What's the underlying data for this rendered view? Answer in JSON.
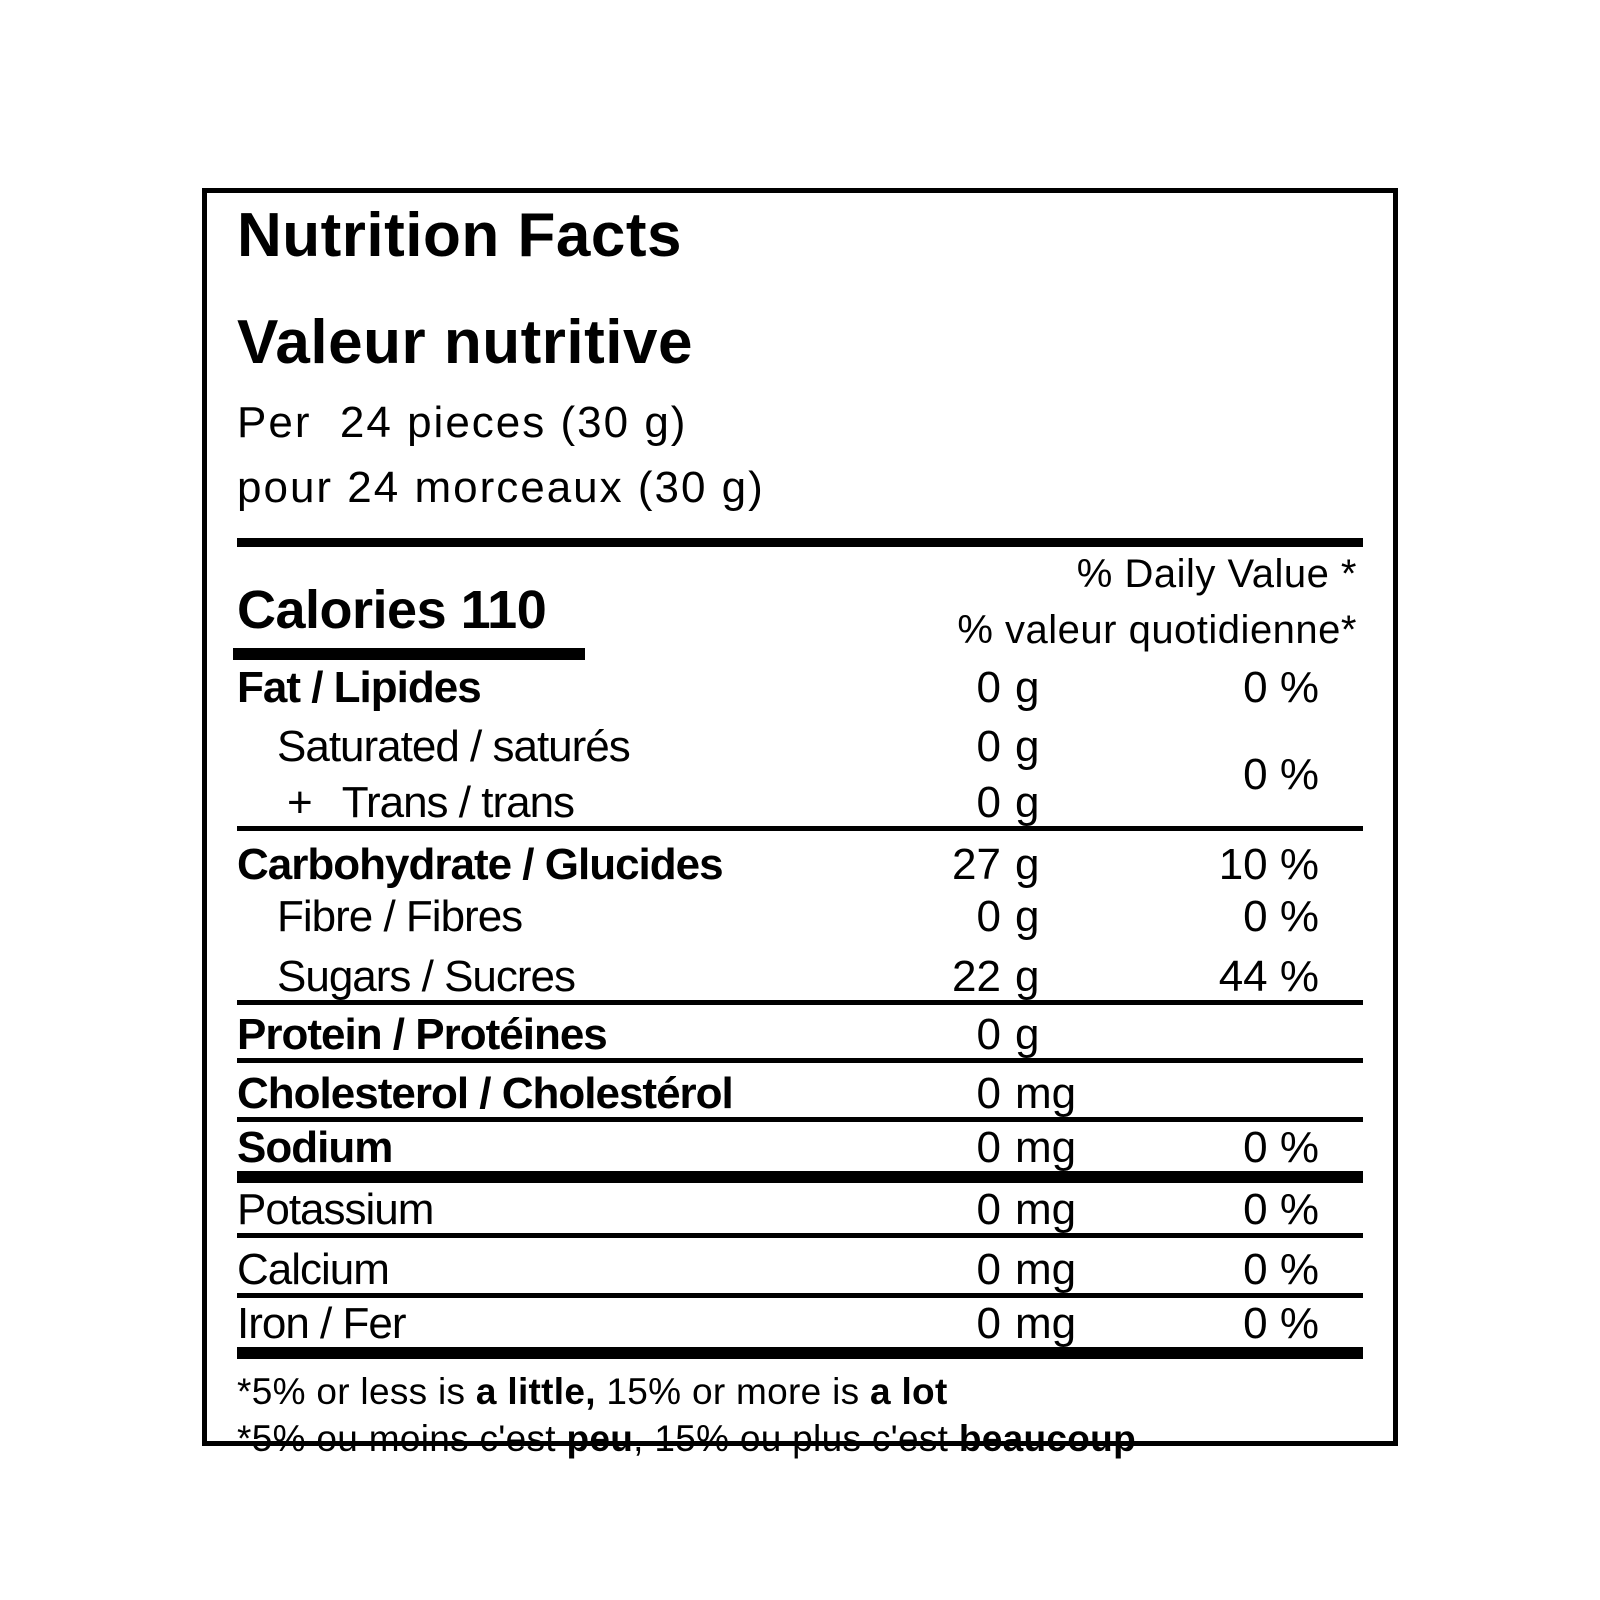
{
  "header": {
    "title_en": "Nutrition Facts",
    "title_fr": "Valeur nutritive",
    "serving_en": "Per  24 pieces (30 g)",
    "serving_fr": "pour 24 morceaux (30 g)"
  },
  "daily_value_header": {
    "en": "% Daily Value *",
    "fr": "% valeur quotidienne*"
  },
  "calories": {
    "label": "Calories",
    "value": "110"
  },
  "rows": {
    "fat": {
      "label": "Fat / Lipides",
      "num": "0",
      "unit": "g",
      "pct": "0 %"
    },
    "saturated": {
      "label": "Saturated / saturés",
      "num": "0",
      "unit": "g"
    },
    "trans": {
      "plus": "+",
      "label": "Trans / trans",
      "num": "0",
      "unit": "g"
    },
    "sat_trans_pct": "0 %",
    "carbohydrate": {
      "label": "Carbohydrate / Glucides",
      "num": "27",
      "unit": "g",
      "pct": "10 %"
    },
    "fibre": {
      "label": "Fibre / Fibres",
      "num": "0",
      "unit": "g",
      "pct": "0 %"
    },
    "sugars": {
      "label": "Sugars / Sucres",
      "num": "22",
      "unit": "g",
      "pct": "44 %"
    },
    "protein": {
      "label": "Protein / Protéines",
      "num": "0",
      "unit": "g"
    },
    "cholesterol": {
      "label": "Cholesterol / Cholestérol",
      "num": "0",
      "unit": "mg"
    },
    "sodium": {
      "label": "Sodium",
      "num": "0",
      "unit": "mg",
      "pct": "0 %"
    },
    "potassium": {
      "label": "Potassium",
      "num": "0",
      "unit": "mg",
      "pct": "0 %"
    },
    "calcium": {
      "label": "Calcium",
      "num": "0",
      "unit": "mg",
      "pct": "0 %"
    },
    "iron": {
      "label": "Iron / Fer",
      "num": "0",
      "unit": "mg",
      "pct": "0 %"
    }
  },
  "footnotes": {
    "en": {
      "p1": "*5% or less is ",
      "b1": "a little,",
      "p2": " 15% or more is ",
      "b2": "a lot"
    },
    "fr": {
      "p1": "*5% ou moins c'est ",
      "b1": "peu",
      "p2": ", 15% ou plus c'est ",
      "b2": "beaucoup"
    }
  }
}
